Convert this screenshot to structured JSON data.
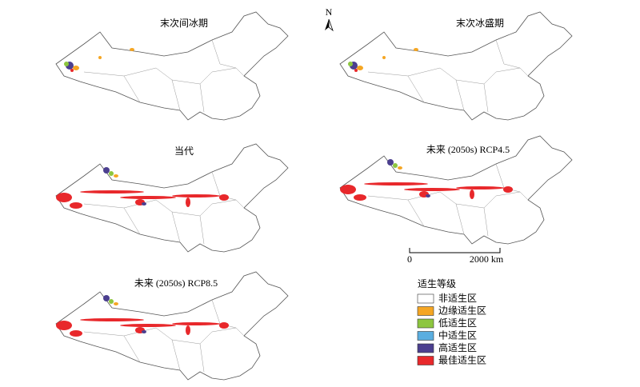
{
  "panels": [
    {
      "title": "末次间冰期"
    },
    {
      "title": "末次冰盛期"
    },
    {
      "title": "当代"
    },
    {
      "title": "未来 (2050s) RCP4.5"
    },
    {
      "title": "未来 (2050s) RCP8.5"
    }
  ],
  "north_arrow": "N",
  "scale_bar": {
    "start": "0",
    "end": "2000 km"
  },
  "legend": {
    "title": "适生等级",
    "items": [
      {
        "label": "非适生区",
        "color": "#ffffff"
      },
      {
        "label": "边缘适生区",
        "color": "#f5a623"
      },
      {
        "label": "低适生区",
        "color": "#8dc63f"
      },
      {
        "label": "中适生区",
        "color": "#5aaee0"
      },
      {
        "label": "高适生区",
        "color": "#4b3f8f"
      },
      {
        "label": "最佳适生区",
        "color": "#e8282b"
      }
    ]
  }
}
